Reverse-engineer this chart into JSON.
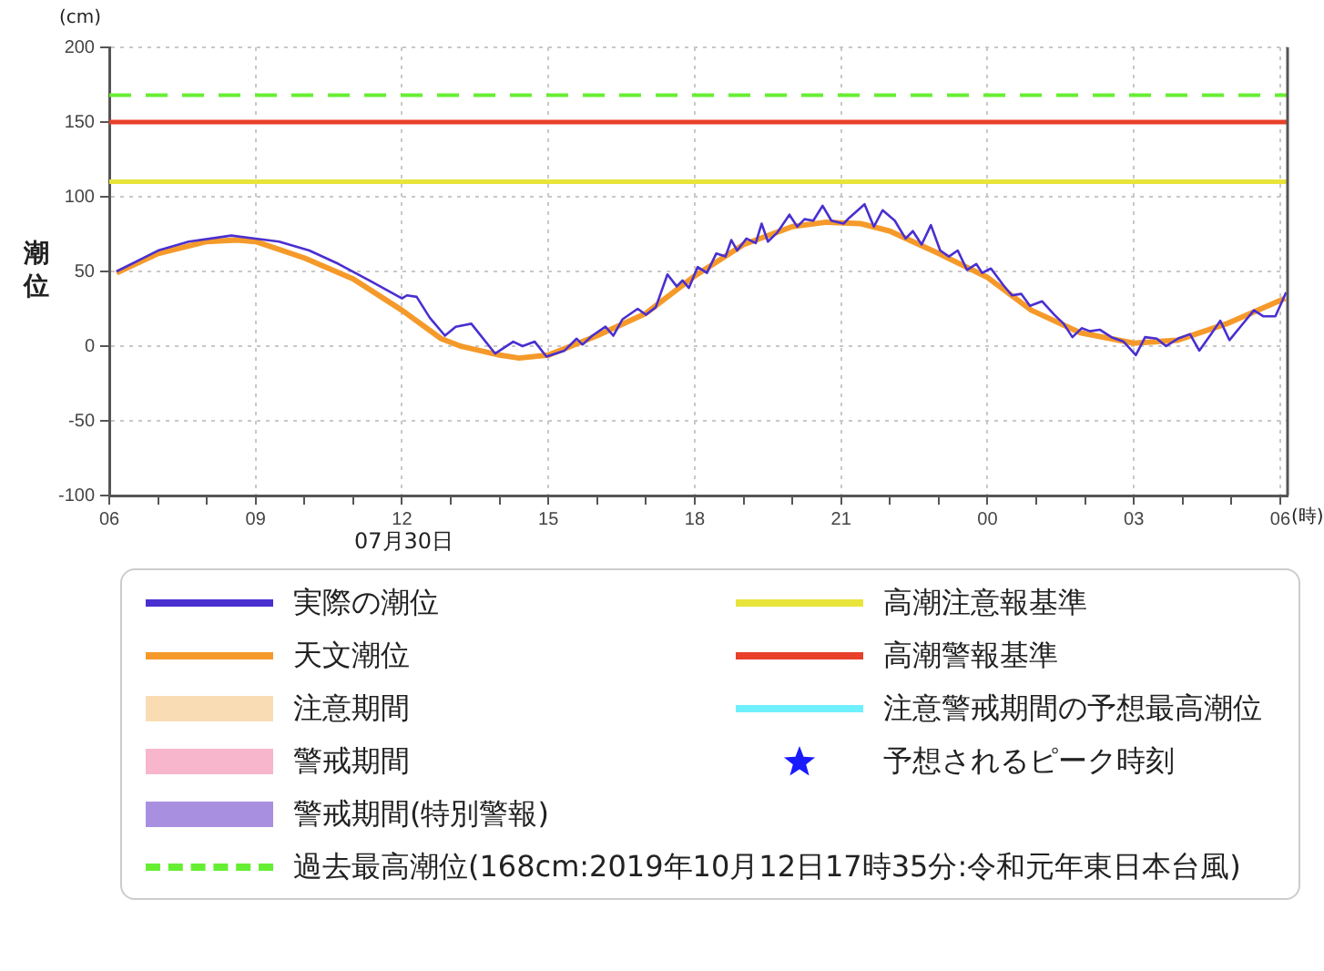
{
  "chart_data": {
    "type": "line",
    "ylabel": "潮位",
    "xlabel": "(時)",
    "legend": "bottom",
    "grid": true,
    "marker": "none",
    "xlim": [
      6,
      30.15
    ],
    "xticks": [
      {
        "value": 6,
        "label": "06"
      },
      {
        "value": 7,
        "label": null
      },
      {
        "value": 8,
        "label": null
      },
      {
        "value": 9,
        "label": "09"
      },
      {
        "value": 10,
        "label": null
      },
      {
        "value": 11,
        "label": null
      },
      {
        "value": 12,
        "label": "12"
      },
      {
        "value": 13,
        "label": null
      },
      {
        "value": 14,
        "label": null
      },
      {
        "value": 15,
        "label": "15"
      },
      {
        "value": 16,
        "label": null
      },
      {
        "value": 17,
        "label": null
      },
      {
        "value": 18,
        "label": "18"
      },
      {
        "value": 19,
        "label": null
      },
      {
        "value": 20,
        "label": null
      },
      {
        "value": 21,
        "label": "21"
      },
      {
        "value": 22,
        "label": null
      },
      {
        "value": 23,
        "label": null
      },
      {
        "value": 24,
        "label": "00"
      },
      {
        "value": 25,
        "label": null
      },
      {
        "value": 26,
        "label": null
      },
      {
        "value": 27,
        "label": "03"
      },
      {
        "value": 28,
        "label": null
      },
      {
        "value": 29,
        "label": null
      },
      {
        "value": 30,
        "label": "06"
      }
    ],
    "ylim": [
      -100,
      200
    ],
    "yticks": [
      -100,
      -50,
      0,
      50,
      100,
      150,
      200
    ],
    "annotations": [
      "(cm)",
      "07月30日"
    ],
    "series": [
      {
        "name": "実際の潮位",
        "type": "line",
        "color": "#4a2fd0",
        "x": [
          6.15,
          7,
          7.63,
          8.5,
          9,
          9.48,
          10.1,
          10.7,
          11.33,
          12,
          12.1,
          12.3,
          12.57,
          12.88,
          13.1,
          13.42,
          13.91,
          14.28,
          14.47,
          14.72,
          14.96,
          15.33,
          15.58,
          15.7,
          15.9,
          16.17,
          16.33,
          16.52,
          16.83,
          17,
          17.2,
          17.44,
          17.63,
          17.75,
          17.88,
          18.06,
          18.25,
          18.44,
          18.63,
          18.75,
          18.87,
          19.06,
          19.25,
          19.37,
          19.5,
          19.69,
          19.94,
          20.1,
          20.25,
          20.43,
          20.62,
          20.8,
          21.05,
          21.17,
          21.48,
          21.67,
          21.85,
          22.1,
          22.32,
          22.47,
          22.65,
          22.84,
          23.03,
          23.21,
          23.39,
          23.58,
          23.77,
          23.89,
          24.07,
          24.32,
          24.5,
          24.69,
          24.87,
          25.12,
          25.37,
          25.56,
          25.74,
          25.93,
          26.1,
          26.3,
          26.54,
          26.79,
          27.04,
          27.23,
          27.47,
          27.66,
          27.9,
          28.15,
          28.34,
          28.58,
          28.77,
          28.96,
          29.21,
          29.46,
          29.65,
          29.9,
          30.12
        ],
        "values": [
          50,
          64,
          70,
          74,
          72,
          70,
          64,
          55,
          44,
          32,
          34,
          33,
          19,
          7,
          13,
          15,
          -5,
          3,
          0,
          3,
          -7,
          -3,
          5,
          1,
          7,
          13,
          7,
          18,
          25,
          21,
          26,
          48,
          40,
          44,
          39,
          53,
          49,
          62,
          60,
          71,
          64,
          72,
          69,
          82,
          70,
          76,
          88,
          80,
          85,
          84,
          94,
          84,
          82,
          86,
          95,
          80,
          91,
          84,
          72,
          77,
          68,
          81,
          64,
          60,
          64,
          51,
          55,
          49,
          52,
          41,
          34,
          35,
          27,
          30,
          21,
          15,
          6,
          12,
          10,
          11,
          6,
          3,
          -6,
          6,
          5,
          0,
          5,
          8,
          -3,
          8,
          17,
          4,
          14,
          24,
          20,
          20,
          36
        ]
      },
      {
        "name": "天文潮位",
        "type": "line",
        "color": "#f59a2a",
        "x": [
          6.15,
          7,
          8,
          8.6,
          9,
          10,
          11,
          12,
          12.8,
          13.2,
          14,
          14.4,
          15,
          16,
          17,
          18,
          19,
          20,
          20.7,
          21.4,
          22,
          23,
          24,
          24.9,
          25.9,
          27,
          27.9,
          28.9,
          30.1
        ],
        "values": [
          49,
          62,
          70,
          71,
          70,
          59,
          45,
          24,
          5,
          0,
          -6,
          -8,
          -6,
          7,
          22,
          47,
          68,
          80,
          83,
          82,
          77,
          62,
          46,
          24,
          9,
          2,
          4,
          15,
          32
        ]
      },
      {
        "name": "注意期間",
        "type": "area",
        "color": "#fadcb4"
      },
      {
        "name": "警戒期間",
        "type": "area",
        "color": "#f7b6cc"
      },
      {
        "name": "警戒期間(特別警報)",
        "type": "area",
        "color": "#a98fe0"
      },
      {
        "name": "注意警戒期間の予想最高潮位",
        "type": "line",
        "color": "#6ff0ff"
      },
      {
        "name": "予想されるピーク時刻",
        "type": "scatter",
        "marker": "star",
        "color": "#1a1aff"
      }
    ],
    "ref_lines": [
      {
        "axis": "y",
        "value": 110,
        "label": "高潮注意報基準",
        "color": "#e8e43a",
        "line_style": "solid"
      },
      {
        "axis": "y",
        "value": 150,
        "label": "高潮警報基準",
        "color": "#e8402a",
        "line_style": "solid"
      },
      {
        "axis": "y",
        "value": 168,
        "label": "過去最高潮位(168cm:2019年10月12日17時35分:令和元年東日本台風)",
        "color": "#66ee33",
        "line_style": "dashed"
      }
    ]
  }
}
